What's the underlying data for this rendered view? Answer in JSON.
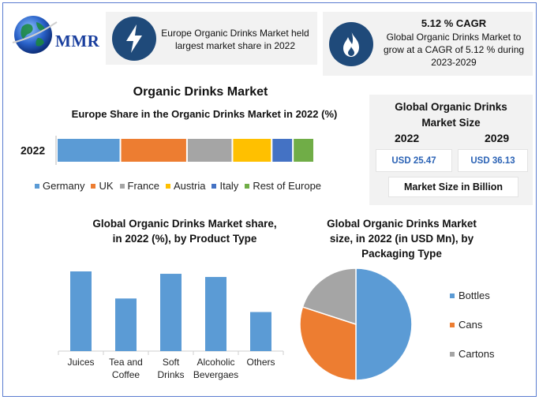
{
  "brand": {
    "logo_text": "MMR"
  },
  "header": {
    "card1": {
      "text_line1": "Europe Organic Drinks Market held",
      "text_line2": "largest market share in 2022",
      "icon": "lightning-icon"
    },
    "card2": {
      "title": "5.12 % CAGR",
      "text_line1": "Global Organic Drinks Market to",
      "text_line2": "grow at a CAGR of 5.12 % during",
      "text_line3": "2023-2029",
      "icon": "flame-icon"
    }
  },
  "main_title": "Organic Drinks Market",
  "market_size": {
    "title_line1": "Global Organic Drinks",
    "title_line2": "Market Size",
    "year_start": "2022",
    "year_end": "2029",
    "value_start": "USD 25.47",
    "value_end": "USD 36.13",
    "unit_label": "Market Size in Billion"
  },
  "chart_data": [
    {
      "type": "bar",
      "orientation": "horizontal-stacked",
      "title": "Europe Share in the Organic Drinks Market in 2022 (%)",
      "categories": [
        "2022"
      ],
      "series": [
        {
          "name": "Germany",
          "values": [
            21
          ],
          "color": "#5b9bd5"
        },
        {
          "name": "UK",
          "values": [
            22
          ],
          "color": "#ed7d31"
        },
        {
          "name": "France",
          "values": [
            15
          ],
          "color": "#a5a5a5"
        },
        {
          "name": "Austria",
          "values": [
            13
          ],
          "color": "#ffc000"
        },
        {
          "name": "Italy",
          "values": [
            7
          ],
          "color": "#4472c4"
        },
        {
          "name": "Rest of Europe",
          "values": [
            7
          ],
          "color": "#70ad47"
        }
      ],
      "legend": "bottom"
    },
    {
      "type": "bar",
      "title_line1": "Global Organic Drinks Market  share,",
      "title_line2": "in 2022 (%), by Product Type",
      "categories": [
        "Juices",
        "Tea and Coffee",
        "Soft Drinks",
        "Alcoholic Bevergaes",
        "Others"
      ],
      "category_lines": [
        [
          "Juices"
        ],
        [
          "Tea and",
          "Coffee"
        ],
        [
          "Soft",
          "Drinks"
        ],
        [
          "Alcoholic",
          "Bevergaes"
        ],
        [
          "Others"
        ]
      ],
      "values": [
        100,
        66,
        97,
        93,
        49
      ],
      "ylim": [
        0,
        100
      ],
      "color": "#5b9bd5",
      "grid": false
    },
    {
      "type": "pie",
      "title_line1": "Global Organic Drinks Market",
      "title_line2": "size, in 2022 (in USD Mn), by",
      "title_line3": "Packaging Type",
      "labels": [
        "Bottles",
        "Cans",
        "Cartons"
      ],
      "values": [
        50,
        30,
        20
      ],
      "colors": [
        "#5b9bd5",
        "#ed7d31",
        "#a5a5a5"
      ],
      "legend": "right"
    }
  ]
}
